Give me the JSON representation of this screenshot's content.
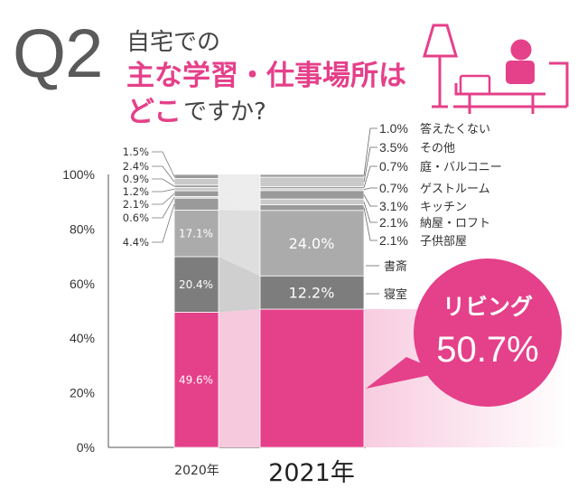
{
  "header": {
    "q_label": "Q2",
    "title_line1": "自宅での",
    "title_line2": "主な学習・仕事場所は",
    "title_line3_accent": "どこ",
    "title_line3_rest": "ですか?"
  },
  "colors": {
    "accent": "#e5408a",
    "living_2020": "#e5408a",
    "bedroom": "#7d7d7d",
    "study": "#ababab",
    "minor": "#c9c9c9",
    "gap_fill": "#e6e6e6"
  },
  "chart_data": {
    "type": "bar",
    "stacked": true,
    "categories": [
      "2020年",
      "2021年"
    ],
    "ylim": [
      0,
      100
    ],
    "y_ticks": [
      "0%",
      "20%",
      "40%",
      "60%",
      "80%",
      "100%"
    ],
    "series": [
      {
        "name": "リビング",
        "values": [
          49.6,
          50.7
        ]
      },
      {
        "name": "寝室",
        "values": [
          20.4,
          12.2
        ]
      },
      {
        "name": "書斎",
        "values": [
          17.1,
          24.0
        ]
      },
      {
        "name": "子供部屋",
        "values": [
          4.4,
          2.1
        ]
      },
      {
        "name": "納屋・ロフト",
        "values": [
          0.6,
          2.1
        ]
      },
      {
        "name": "キッチン",
        "values": [
          2.1,
          3.1
        ]
      },
      {
        "name": "ゲストルーム",
        "values": [
          1.2,
          0.7
        ]
      },
      {
        "name": "庭・バルコニー",
        "values": [
          0.9,
          0.7
        ]
      },
      {
        "name": "その他",
        "values": [
          2.4,
          3.5
        ]
      },
      {
        "name": "答えたくない",
        "values": [
          1.5,
          1.0
        ]
      }
    ],
    "labels_2020": [
      "49.6%",
      "20.4%",
      "17.1%",
      "4.4%",
      "0.6%",
      "2.1%",
      "1.2%",
      "0.9%",
      "2.4%",
      "1.5%"
    ],
    "labels_2021": [
      "24.0%",
      "12.2%"
    ],
    "legend_2021": [
      {
        "value": "1.0%",
        "label": "答えたくない"
      },
      {
        "value": "3.5%",
        "label": "その他"
      },
      {
        "value": "0.7%",
        "label": "庭・バルコニー"
      },
      {
        "value": "0.7%",
        "label": "ゲストルーム"
      },
      {
        "value": "3.1%",
        "label": "キッチン"
      },
      {
        "value": "2.1%",
        "label": "納屋・ロフト"
      },
      {
        "value": "2.1%",
        "label": "子供部屋"
      }
    ],
    "side_labels": [
      "書斎",
      "寝室"
    ],
    "callout": {
      "label": "リビング",
      "value": "50.7%"
    }
  }
}
